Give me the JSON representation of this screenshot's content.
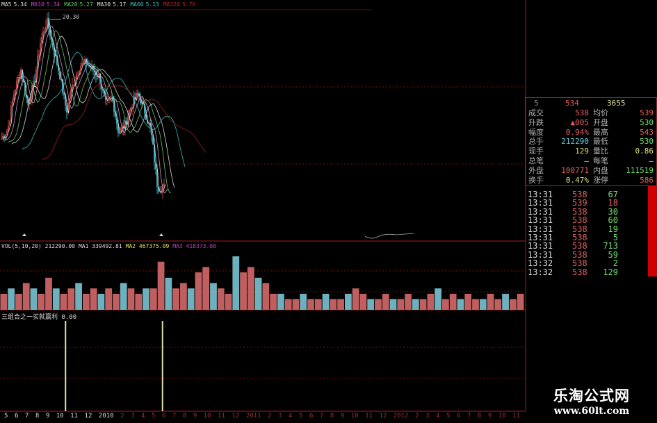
{
  "ma_legend": [
    {
      "label": "MA5",
      "value": "5.34",
      "color": "#e0e0e0"
    },
    {
      "label": "MA10",
      "value": "5.34",
      "color": "#d040d0"
    },
    {
      "label": "MA20",
      "value": "5.27",
      "color": "#60d060"
    },
    {
      "label": "MA30",
      "value": "5.17",
      "color": "#e0e0e0"
    },
    {
      "label": "MA60",
      "value": "5.13",
      "color": "#40c0c0"
    },
    {
      "label": "MA120",
      "value": "5.70",
      "color": "#c02020"
    }
  ],
  "peak_label": "20.30",
  "vol_legend": [
    {
      "label": "VOL(5,10,20)",
      "value": "212290.00",
      "color": "#ddd"
    },
    {
      "label": "MA1",
      "value": "339492.81",
      "color": "#ddd"
    },
    {
      "label": "MA2",
      "value": "467375.09",
      "color": "#e0e060"
    },
    {
      "label": "MA3",
      "value": "418373.00",
      "color": "#c040c0"
    }
  ],
  "indicator": {
    "label": "三组合之一买就赢利",
    "value": "0.00"
  },
  "quote": {
    "header": {
      "left": "5",
      "mid": "534",
      "right": "3655"
    },
    "rows": [
      {
        "l1": "成交",
        "v1": "538",
        "c1": "#e06060",
        "l2": "均价",
        "v2": "539",
        "c2": "#e06060"
      },
      {
        "l1": "升跌",
        "v1": "▲005",
        "c1": "#e06060",
        "l2": "开盘",
        "v2": "530",
        "c2": "#70e070"
      },
      {
        "l1": "幅度",
        "v1": "0.94%",
        "c1": "#e06060",
        "l2": "最高",
        "v2": "543",
        "c2": "#e06060"
      },
      {
        "l1": "总手",
        "v1": "212290",
        "c1": "#60d0e0",
        "l2": "最低",
        "v2": "530",
        "c2": "#70e070"
      },
      {
        "l1": "现手",
        "v1": "129",
        "c1": "#e0e080",
        "l2": "量比",
        "v2": "0.86",
        "c2": "#e0e080"
      },
      {
        "l1": "总笔",
        "v1": "—",
        "c1": "#ccc",
        "l2": "每笔",
        "v2": "—",
        "c2": "#ccc"
      },
      {
        "l1": "外盘",
        "v1": "100771",
        "c1": "#e06060",
        "l2": "内盘",
        "v2": "111519",
        "c2": "#70e070"
      },
      {
        "l1": "换手",
        "v1": "0.47%",
        "c1": "#e0e080",
        "l2": "涨停",
        "v2": "586",
        "c2": "#e06060"
      }
    ]
  },
  "trades": [
    {
      "time": "13:31",
      "price": "538",
      "qty": "67",
      "qcolor": "#70e070"
    },
    {
      "time": "13:31",
      "price": "539",
      "qty": "18",
      "qcolor": "#e06060"
    },
    {
      "time": "13:31",
      "price": "538",
      "qty": "30",
      "qcolor": "#70e070"
    },
    {
      "time": "13:31",
      "price": "538",
      "qty": "60",
      "qcolor": "#70e070"
    },
    {
      "time": "13:31",
      "price": "538",
      "qty": "19",
      "qcolor": "#70e070"
    },
    {
      "time": "13:31",
      "price": "538",
      "qty": "5",
      "qcolor": "#70e070"
    },
    {
      "time": "13:31",
      "price": "538",
      "qty": "713",
      "qcolor": "#70e070"
    },
    {
      "time": "13:31",
      "price": "538",
      "qty": "59",
      "qcolor": "#70e070"
    },
    {
      "time": "13:32",
      "price": "538",
      "qty": "2",
      "qcolor": "#70e070"
    },
    {
      "time": "13:32",
      "price": "538",
      "qty": "129",
      "qcolor": "#70e070"
    }
  ],
  "watermark": {
    "title": "乐淘公式网",
    "url": "www.60lt.com"
  },
  "chart_data": {
    "type": "line",
    "title": "",
    "price_close": [
      9.64,
      10.57,
      13.98,
      15.84,
      12.74,
      14.6,
      18.32,
      20.18,
      17.7,
      15.22,
      12.12,
      14.6,
      16.15,
      16.46,
      15.84,
      15.22,
      12.74,
      13.36,
      10.26,
      10.88,
      12.74,
      13.67,
      12.12,
      10.26,
      5.3,
      5.38
    ],
    "price_high": 20.3,
    "volume": [
      3,
      4,
      3,
      5,
      4,
      3,
      6,
      4,
      3,
      4,
      5,
      3,
      4,
      3,
      4,
      3,
      5,
      4,
      3,
      4,
      4,
      9,
      6,
      4,
      5,
      4,
      7,
      8,
      5,
      4,
      3,
      10,
      7,
      8,
      6,
      5,
      3,
      3,
      2,
      2,
      3,
      2,
      2,
      3,
      2,
      2,
      3,
      4,
      3,
      2,
      2,
      3,
      2,
      2,
      3,
      2,
      2,
      3,
      4,
      2,
      3,
      2,
      3,
      2,
      2,
      3,
      2,
      3,
      2,
      3
    ],
    "signal_positions": [
      0.125,
      0.31
    ],
    "x_tick_labels": [
      "5",
      "6",
      "7",
      "8",
      "9",
      "10",
      "11",
      "12",
      "2010",
      "2",
      "3",
      "4",
      "5",
      "6",
      "7",
      "8",
      "9",
      "10",
      "11",
      "12",
      "2011",
      "2",
      "3",
      "4",
      "5",
      "6",
      "7",
      "8",
      "9",
      "10",
      "11",
      "12",
      "2012",
      "2",
      "3",
      "4",
      "5",
      "6",
      "7",
      "8",
      "9",
      "10",
      "11"
    ],
    "colors": {
      "up": "#e05050",
      "down": "#50d0e0",
      "grid": "#7a1010",
      "signal": "#e0e0b0"
    }
  }
}
